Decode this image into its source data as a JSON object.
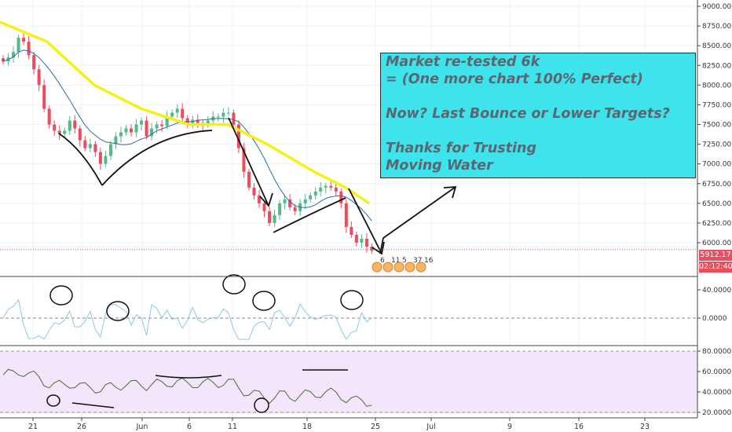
{
  "chart_data": [
    {
      "type": "line",
      "title": "",
      "y_axis": {
        "ticks": [
          "9000.00",
          "8750.00",
          "8500.00",
          "8250.00",
          "8000.00",
          "7750.00",
          "7500.00",
          "7250.00",
          "7000.00",
          "6750.00",
          "6500.00",
          "6250.00",
          "6000.00"
        ],
        "ylim": [
          5700,
          9100
        ]
      },
      "x_axis": {
        "ticks": [
          "21",
          "26",
          "Jun",
          "6",
          "11",
          "18",
          "25",
          "Jul",
          "9",
          "16",
          "23"
        ]
      },
      "series": [
        {
          "type": "candlestick",
          "close": [
            8300,
            8350,
            8420,
            8600,
            8550,
            8380,
            8200,
            8000,
            7700,
            7500,
            7420,
            7380,
            7420,
            7550,
            7450,
            7300,
            7200,
            7250,
            7150,
            7000,
            7100,
            7250,
            7350,
            7400,
            7450,
            7400,
            7500,
            7550,
            7350,
            7450,
            7500,
            7480,
            7600,
            7650,
            7700,
            7580,
            7500,
            7560,
            7520,
            7500,
            7550,
            7600,
            7600,
            7650,
            7650,
            7500,
            7200,
            6900,
            6700,
            6600,
            6500,
            6400,
            6250,
            6350,
            6500,
            6550,
            6450,
            6400,
            6500,
            6550,
            6600,
            6650,
            6700,
            6720,
            6700,
            6650,
            6500,
            6200,
            6100,
            6000,
            6050,
            5950,
            5900
          ]
        }
      ],
      "current_price": "5912.17",
      "countdown": "02:12:40"
    },
    {
      "type": "line",
      "yticks": [
        "40.0000",
        "0.0000"
      ],
      "ylim": [
        -35,
        55
      ]
    },
    {
      "type": "line",
      "yticks": [
        "80.0000",
        "60.0000",
        "40.0000",
        "20.0000"
      ],
      "ylim": [
        15,
        85
      ]
    }
  ],
  "annotation": {
    "lines": [
      "Market re-tested 6k",
      "= (One more chart 100% Perfect)",
      "",
      "Now? Last Bounce or Lower Targets?",
      "",
      "Thanks for Trusting",
      "Moving Water"
    ]
  },
  "event_markers": [
    "6",
    "11",
    "5",
    "37",
    "16"
  ],
  "colors": {
    "up": "#53b987",
    "down": "#eb4d5c",
    "ma_yellow": "#f5f016",
    "ma_blue": "#2d6ca2",
    "annotation_bg": "#3ee3ec",
    "osc2_bg": "#f3e6fa"
  }
}
